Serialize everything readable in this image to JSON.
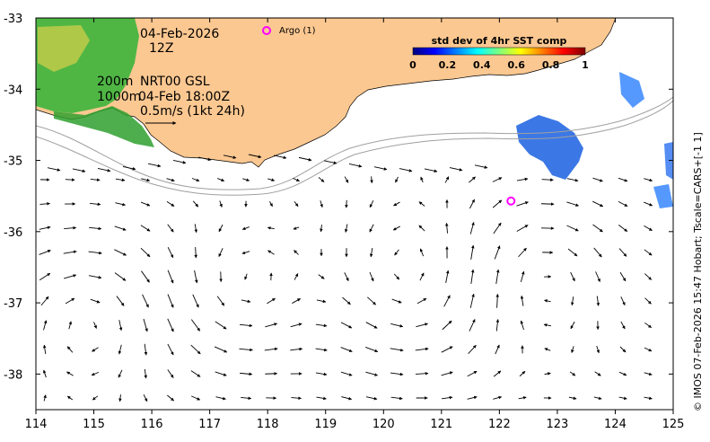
{
  "annotations": {
    "date": "04-Feb-2026",
    "hour": "12Z",
    "depth_200": "200m",
    "depth_1000": "1000m",
    "product": "NRT00 GSL",
    "time": "04-Feb 18:00Z",
    "scale": "0.5m/s (1kt 24h)"
  },
  "legend": {
    "argo_label": "Argo (1)",
    "argo_color": "#ff00ff"
  },
  "colorbar": {
    "title": "std dev of 4hr SST comp",
    "ticks": [
      "0",
      "0.2",
      "0.4",
      "0.6",
      "0.8",
      "1"
    ],
    "colors": [
      "#00007f",
      "#0000ff",
      "#007fff",
      "#00ffff",
      "#7fff7f",
      "#ffff00",
      "#ff7f00",
      "#ff0000",
      "#7f0000"
    ]
  },
  "credit": "© IMOS 07-Feb-2026 15:47 Hobart; Tscale=CARS+[-1 1]",
  "chart_data": {
    "type": "map",
    "xlim": [
      114,
      125
    ],
    "ylim": [
      -38.5,
      -33
    ],
    "xticks": [
      "114",
      "115",
      "116",
      "117",
      "118",
      "119",
      "120",
      "121",
      "122",
      "123",
      "124",
      "125"
    ],
    "yticks": [
      "-33",
      "-34",
      "-35",
      "-36",
      "-37",
      "-38"
    ],
    "argo_floats": [
      {
        "lon": 118.0,
        "lat": -33.2
      },
      {
        "lon": 122.2,
        "lat": -35.57
      }
    ],
    "colors": {
      "land": "#fcc891",
      "contour": "#a0a0a0"
    }
  }
}
